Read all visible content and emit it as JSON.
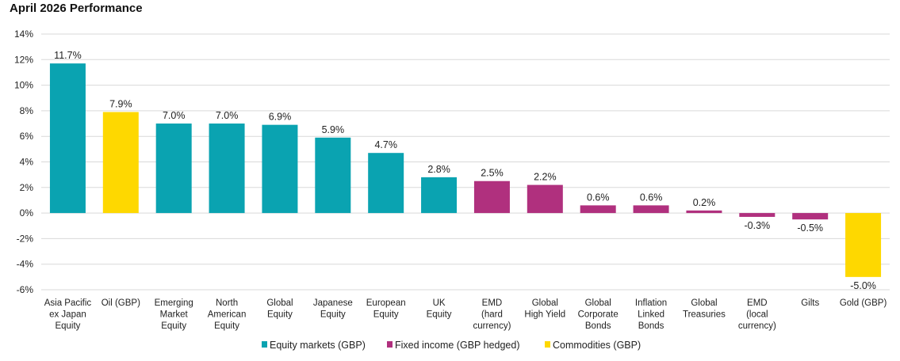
{
  "chart_data": {
    "type": "bar",
    "title": "April 2026 Performance",
    "categories": [
      "Asia Pacific ex Japan Equity",
      "Oil (GBP)",
      "Emerging Market Equity",
      "North American Equity",
      "Global Equity",
      "Japanese Equity",
      "European Equity",
      "UK Equity",
      "EMD (hard currency)",
      "Global High Yield",
      "Global Corporate Bonds",
      "Inflation Linked Bonds",
      "Global Treasuries",
      "EMD (local currency)",
      "Gilts",
      "Gold (GBP)"
    ],
    "category_lines": [
      [
        "Asia Pacific",
        "ex Japan",
        "Equity"
      ],
      [
        "Oil (GBP)"
      ],
      [
        "Emerging",
        "Market",
        "Equity"
      ],
      [
        "North",
        "American",
        "Equity"
      ],
      [
        "Global",
        "Equity"
      ],
      [
        "Japanese",
        "Equity"
      ],
      [
        "European",
        "Equity"
      ],
      [
        "UK",
        "Equity"
      ],
      [
        "EMD",
        "(hard",
        "currency)"
      ],
      [
        "Global",
        "High Yield"
      ],
      [
        "Global",
        "Corporate",
        "Bonds"
      ],
      [
        "Inflation",
        "Linked",
        "Bonds"
      ],
      [
        "Global",
        "Treasuries"
      ],
      [
        "EMD",
        "(local",
        "currency)"
      ],
      [
        "Gilts"
      ],
      [
        "Gold (GBP)"
      ]
    ],
    "values": [
      11.7,
      7.9,
      7.0,
      7.0,
      6.9,
      5.9,
      4.7,
      2.8,
      2.5,
      2.2,
      0.6,
      0.6,
      0.2,
      -0.3,
      -0.5,
      -5.0
    ],
    "data_labels": [
      "11.7%",
      "7.9%",
      "7.0%",
      "7.0%",
      "6.9%",
      "5.9%",
      "4.7%",
      "2.8%",
      "2.5%",
      "2.2%",
      "0.6%",
      "0.6%",
      "0.2%",
      "-0.3%",
      "-0.5%",
      "-5.0%"
    ],
    "groups": [
      "equity",
      "commodity",
      "equity",
      "equity",
      "equity",
      "equity",
      "equity",
      "equity",
      "fixed",
      "fixed",
      "fixed",
      "fixed",
      "fixed",
      "fixed",
      "fixed",
      "commodity"
    ],
    "legend": [
      {
        "key": "equity",
        "name": "Equity markets (GBP)",
        "color": "#0aa3b1"
      },
      {
        "key": "fixed",
        "name": "Fixed income (GBP hedged)",
        "color": "#b0307e"
      },
      {
        "key": "commodity",
        "name": "Commodities (GBP)",
        "color": "#fed800"
      }
    ],
    "ylim": [
      -6,
      14
    ],
    "yticks": [
      -6,
      -4,
      -2,
      0,
      2,
      4,
      6,
      8,
      10,
      12,
      14
    ],
    "ytick_labels": [
      "-6%",
      "-4%",
      "-2%",
      "0%",
      "2%",
      "4%",
      "6%",
      "8%",
      "10%",
      "12%",
      "14%"
    ],
    "grid": true,
    "legend_position": "bottom-center"
  }
}
